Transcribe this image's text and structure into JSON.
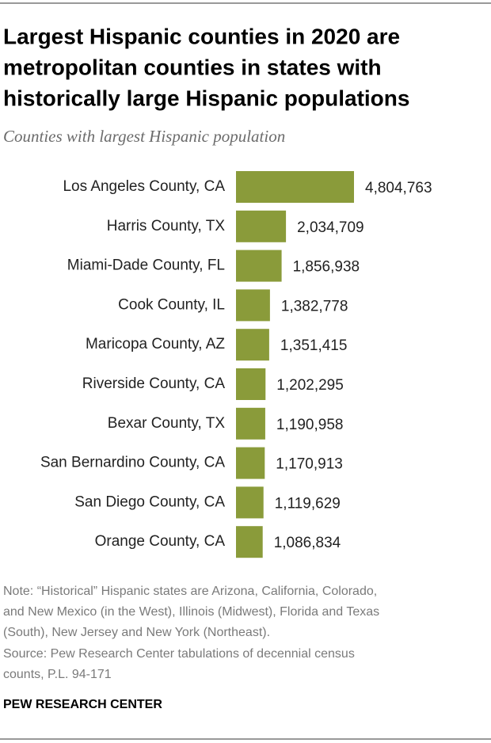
{
  "chart_data": {
    "type": "bar",
    "orientation": "horizontal",
    "title": [
      "Largest Hispanic counties in 2020 are",
      "metropolitan counties in states with",
      "historically large Hispanic populations"
    ],
    "subtitle": "Counties with largest Hispanic population",
    "categories": [
      "Los Angeles County, CA",
      "Harris County, TX",
      "Miami-Dade County, FL",
      "Cook County, IL",
      "Maricopa County, AZ",
      "Riverside County, CA",
      "Bexar County, TX",
      "San Bernardino County, CA",
      "San Diego County, CA",
      "Orange County, CA"
    ],
    "values": [
      4804763,
      2034709,
      1856938,
      1382778,
      1351415,
      1202295,
      1190958,
      1170913,
      1119629,
      1086834
    ],
    "value_labels": [
      "4,804,763",
      "2,034,709",
      "1,856,938",
      "1,382,778",
      "1,351,415",
      "1,202,295",
      "1,190,958",
      "1,170,913",
      "1,119,629",
      "1,086,834"
    ],
    "color": "#8a9b3a",
    "note": [
      "Note: “Historical” Hispanic states are Arizona, California, Colorado,",
      "and New Mexico (in the West), Illinois (Midwest), Florida and Texas",
      "(South), New Jersey and New York (Northeast)."
    ],
    "source": [
      "Source: Pew Research Center tabulations of decennial census",
      "counts, P.L. 94-171"
    ],
    "footer": "PEW RESEARCH CENTER"
  }
}
